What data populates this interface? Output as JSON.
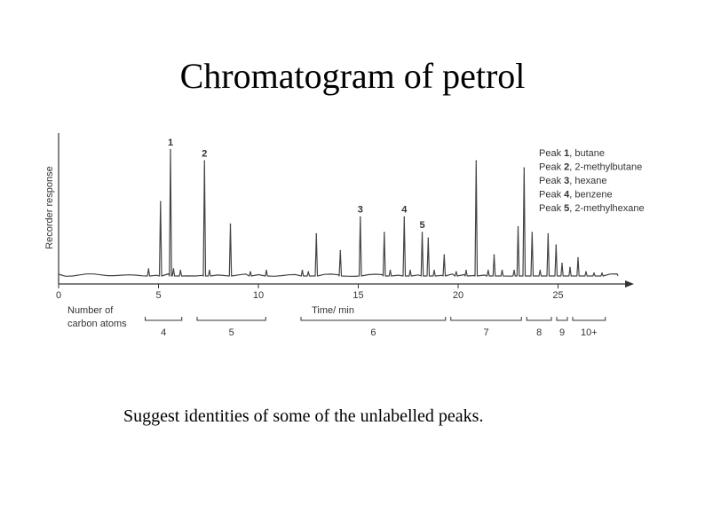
{
  "slide": {
    "title": "Chromatogram of petrol",
    "question": "Suggest identities of some of the unlabelled  peaks."
  },
  "chart_data": {
    "type": "line",
    "title": "",
    "ylabel": "Recorder response",
    "xlabel": "Time/ min",
    "x_ticks": [
      0,
      5,
      10,
      15,
      20,
      25
    ],
    "xlim": [
      0,
      28.3
    ],
    "ylim": [
      0,
      100
    ],
    "y_unit_note": "relative response, arbitrary units (0 = baseline, 100 = top of axis)",
    "peaks": [
      {
        "t": 4.5,
        "h": 5
      },
      {
        "t": 5.1,
        "h": 53
      },
      {
        "t": 5.6,
        "h": 90,
        "label": "1"
      },
      {
        "t": 5.75,
        "h": 5
      },
      {
        "t": 6.1,
        "h": 4
      },
      {
        "t": 7.3,
        "h": 82,
        "label": "2"
      },
      {
        "t": 7.55,
        "h": 4
      },
      {
        "t": 8.6,
        "h": 37
      },
      {
        "t": 9.6,
        "h": 3
      },
      {
        "t": 10.4,
        "h": 4
      },
      {
        "t": 12.2,
        "h": 4
      },
      {
        "t": 12.5,
        "h": 3
      },
      {
        "t": 12.9,
        "h": 30
      },
      {
        "t": 14.1,
        "h": 18
      },
      {
        "t": 15.1,
        "h": 42,
        "label": "3"
      },
      {
        "t": 16.3,
        "h": 31
      },
      {
        "t": 16.6,
        "h": 4
      },
      {
        "t": 17.3,
        "h": 42,
        "label": "4"
      },
      {
        "t": 17.6,
        "h": 4
      },
      {
        "t": 18.2,
        "h": 31,
        "label": "5"
      },
      {
        "t": 18.5,
        "h": 27
      },
      {
        "t": 18.8,
        "h": 4
      },
      {
        "t": 19.3,
        "h": 15
      },
      {
        "t": 19.9,
        "h": 3
      },
      {
        "t": 20.4,
        "h": 4
      },
      {
        "t": 20.9,
        "h": 82
      },
      {
        "t": 21.5,
        "h": 4
      },
      {
        "t": 21.8,
        "h": 15
      },
      {
        "t": 22.2,
        "h": 4
      },
      {
        "t": 22.8,
        "h": 4
      },
      {
        "t": 23.0,
        "h": 35
      },
      {
        "t": 23.3,
        "h": 77
      },
      {
        "t": 23.7,
        "h": 31
      },
      {
        "t": 24.1,
        "h": 4
      },
      {
        "t": 24.5,
        "h": 30
      },
      {
        "t": 24.9,
        "h": 22
      },
      {
        "t": 25.2,
        "h": 9
      },
      {
        "t": 25.6,
        "h": 6
      },
      {
        "t": 26.0,
        "h": 13
      },
      {
        "t": 26.4,
        "h": 3
      },
      {
        "t": 26.8,
        "h": 2
      },
      {
        "t": 27.2,
        "h": 2
      }
    ],
    "legend": [
      {
        "num": "1",
        "name": "butane"
      },
      {
        "num": "2",
        "name": "2-methylbutane"
      },
      {
        "num": "3",
        "name": "hexane"
      },
      {
        "num": "4",
        "name": "benzene"
      },
      {
        "num": "5",
        "name": "2-methylhexane"
      }
    ],
    "legend_prefix": "Peak",
    "legend_placement": "top-right",
    "carbon_label_line1": "Number of",
    "carbon_label_line2": "carbon atoms",
    "carbon_groups": [
      {
        "label": "4",
        "start": 4.2,
        "end": 6.3
      },
      {
        "label": "5",
        "start": 6.8,
        "end": 10.5
      },
      {
        "label": "6",
        "start": 12.0,
        "end": 19.5
      },
      {
        "label": "7",
        "start": 19.5,
        "end": 23.3
      },
      {
        "label": "8",
        "start": 23.3,
        "end": 24.8
      },
      {
        "label": "9",
        "start": 24.8,
        "end": 25.6
      },
      {
        "label": "10+",
        "start": 25.6,
        "end": 27.5
      }
    ],
    "grid": false,
    "colors": {
      "trace": "#444444",
      "text": "#333333"
    }
  }
}
